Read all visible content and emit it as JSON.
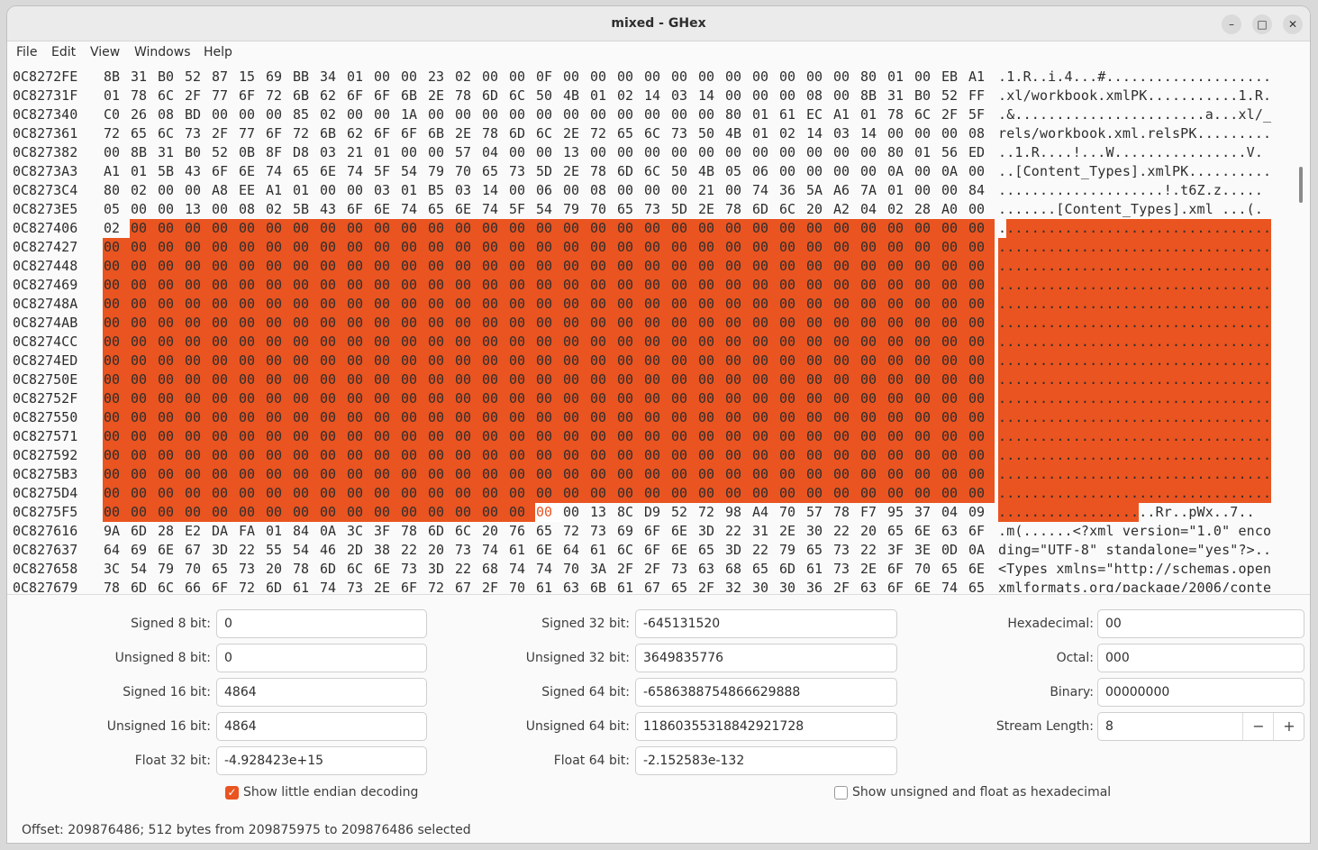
{
  "window": {
    "title": "mixed - GHex"
  },
  "menu": [
    "File",
    "Edit",
    "View",
    "Windows",
    "Help"
  ],
  "hex_rows": [
    {
      "offset": "0C8272FE",
      "bytes": "8B 31 B0 52 87 15 69 BB 34 01 00 00 23 02 00 00 0F 00 00 00 00 00 00 00 00 00 00 00 80 01 00 EB A1",
      "ascii": ".1.R..i.4...#...................."
    },
    {
      "offset": "0C82731F",
      "bytes": "01 78 6C 2F 77 6F 72 6B 62 6F 6F 6B 2E 78 6D 6C 50 4B 01 02 14 03 14 00 00 00 08 00 8B 31 B0 52 FF",
      "ascii": ".xl/workbook.xmlPK...........1.R."
    },
    {
      "offset": "0C827340",
      "bytes": "C0 26 08 BD 00 00 00 85 02 00 00 1A 00 00 00 00 00 00 00 00 00 00 00 80 01 61 EC A1 01 78 6C 2F 5F",
      "ascii": ".&.......................a...xl/_"
    },
    {
      "offset": "0C827361",
      "bytes": "72 65 6C 73 2F 77 6F 72 6B 62 6F 6F 6B 2E 78 6D 6C 2E 72 65 6C 73 50 4B 01 02 14 03 14 00 00 00 08",
      "ascii": "rels/workbook.xml.relsPK........."
    },
    {
      "offset": "0C827382",
      "bytes": "00 8B 31 B0 52 0B 8F D8 03 21 01 00 00 57 04 00 00 13 00 00 00 00 00 00 00 00 00 00 00 80 01 56 ED",
      "ascii": "..1.R....!...W................V."
    },
    {
      "offset": "0C8273A3",
      "bytes": "A1 01 5B 43 6F 6E 74 65 6E 74 5F 54 79 70 65 73 5D 2E 78 6D 6C 50 4B 05 06 00 00 00 00 0A 00 0A 00",
      "ascii": "..[Content_Types].xmlPK.........."
    },
    {
      "offset": "0C8273C4",
      "bytes": "80 02 00 00 A8 EE A1 01 00 00 03 01 B5 03 14 00 06 00 08 00 00 00 21 00 74 36 5A A6 7A 01 00 00 84",
      "ascii": "....................!.t6Z.z....."
    },
    {
      "offset": "0C8273E5",
      "bytes": "05 00 00 13 00 08 02 5B 43 6F 6E 74 65 6E 74 5F 54 79 70 65 73 5D 2E 78 6D 6C 20 A2 04 02 28 A0 00",
      "ascii": ".......[Content_Types].xml ...(."
    },
    {
      "offset": "0C827406",
      "bytes": "02 00 00 00 00 00 00 00 00 00 00 00 00 00 00 00 00 00 00 00 00 00 00 00 00 00 00 00 00 00 00 00 00",
      "ascii": "................................."
    },
    {
      "offset": "0C827427",
      "bytes": "00 00 00 00 00 00 00 00 00 00 00 00 00 00 00 00 00 00 00 00 00 00 00 00 00 00 00 00 00 00 00 00 00",
      "ascii": "................................."
    },
    {
      "offset": "0C827448",
      "bytes": "00 00 00 00 00 00 00 00 00 00 00 00 00 00 00 00 00 00 00 00 00 00 00 00 00 00 00 00 00 00 00 00 00",
      "ascii": "................................."
    },
    {
      "offset": "0C827469",
      "bytes": "00 00 00 00 00 00 00 00 00 00 00 00 00 00 00 00 00 00 00 00 00 00 00 00 00 00 00 00 00 00 00 00 00",
      "ascii": "................................."
    },
    {
      "offset": "0C82748A",
      "bytes": "00 00 00 00 00 00 00 00 00 00 00 00 00 00 00 00 00 00 00 00 00 00 00 00 00 00 00 00 00 00 00 00 00",
      "ascii": "................................."
    },
    {
      "offset": "0C8274AB",
      "bytes": "00 00 00 00 00 00 00 00 00 00 00 00 00 00 00 00 00 00 00 00 00 00 00 00 00 00 00 00 00 00 00 00 00",
      "ascii": "................................."
    },
    {
      "offset": "0C8274CC",
      "bytes": "00 00 00 00 00 00 00 00 00 00 00 00 00 00 00 00 00 00 00 00 00 00 00 00 00 00 00 00 00 00 00 00 00",
      "ascii": "................................."
    },
    {
      "offset": "0C8274ED",
      "bytes": "00 00 00 00 00 00 00 00 00 00 00 00 00 00 00 00 00 00 00 00 00 00 00 00 00 00 00 00 00 00 00 00 00",
      "ascii": "................................."
    },
    {
      "offset": "0C82750E",
      "bytes": "00 00 00 00 00 00 00 00 00 00 00 00 00 00 00 00 00 00 00 00 00 00 00 00 00 00 00 00 00 00 00 00 00",
      "ascii": "................................."
    },
    {
      "offset": "0C82752F",
      "bytes": "00 00 00 00 00 00 00 00 00 00 00 00 00 00 00 00 00 00 00 00 00 00 00 00 00 00 00 00 00 00 00 00 00",
      "ascii": "................................."
    },
    {
      "offset": "0C827550",
      "bytes": "00 00 00 00 00 00 00 00 00 00 00 00 00 00 00 00 00 00 00 00 00 00 00 00 00 00 00 00 00 00 00 00 00",
      "ascii": "................................."
    },
    {
      "offset": "0C827571",
      "bytes": "00 00 00 00 00 00 00 00 00 00 00 00 00 00 00 00 00 00 00 00 00 00 00 00 00 00 00 00 00 00 00 00 00",
      "ascii": "................................."
    },
    {
      "offset": "0C827592",
      "bytes": "00 00 00 00 00 00 00 00 00 00 00 00 00 00 00 00 00 00 00 00 00 00 00 00 00 00 00 00 00 00 00 00 00",
      "ascii": "................................."
    },
    {
      "offset": "0C8275B3",
      "bytes": "00 00 00 00 00 00 00 00 00 00 00 00 00 00 00 00 00 00 00 00 00 00 00 00 00 00 00 00 00 00 00 00 00",
      "ascii": "................................."
    },
    {
      "offset": "0C8275D4",
      "bytes": "00 00 00 00 00 00 00 00 00 00 00 00 00 00 00 00 00 00 00 00 00 00 00 00 00 00 00 00 00 00 00 00 00",
      "ascii": "................................."
    },
    {
      "offset": "0C8275F5",
      "bytes": "00 00 00 00 00 00 00 00 00 00 00 00 00 00 00 00 00 00 13 8C D9 52 72 98 A4 70 57 78 F7 95 37 04 09",
      "ascii": "...................Rr..pWx..7.."
    },
    {
      "offset": "0C827616",
      "bytes": "9A 6D 28 E2 DA FA 01 84 0A 3C 3F 78 6D 6C 20 76 65 72 73 69 6F 6E 3D 22 31 2E 30 22 20 65 6E 63 6F",
      "ascii": ".m(......<?xml version=\"1.0\" enco"
    },
    {
      "offset": "0C827637",
      "bytes": "64 69 6E 67 3D 22 55 54 46 2D 38 22 20 73 74 61 6E 64 61 6C 6F 6E 65 3D 22 79 65 73 22 3F 3E 0D 0A",
      "ascii": "ding=\"UTF-8\" standalone=\"yes\"?>.."
    },
    {
      "offset": "0C827658",
      "bytes": "3C 54 79 70 65 73 20 78 6D 6C 6E 73 3D 22 68 74 74 70 3A 2F 2F 73 63 68 65 6D 61 73 2E 6F 70 65 6E",
      "ascii": "<Types xmlns=\"http://schemas.open"
    },
    {
      "offset": "0C827679",
      "bytes": "78 6D 6C 66 6F 72 6D 61 74 73 2E 6F 72 67 2F 70 61 63 6B 61 67 65 2F 32 30 30 36 2F 63 6F 6E 74 65",
      "ascii": "xmlformats.org/package/2006/conte"
    }
  ],
  "selection": {
    "start_row": 8,
    "start_col": 1,
    "end_row": 23,
    "end_col": 16,
    "cursor_row": 23,
    "cursor_col": 17
  },
  "colors": {
    "selection": "#e95420",
    "accent": "#e95420"
  },
  "inspector": {
    "signed8_label": "Signed 8 bit:",
    "signed8": "0",
    "unsigned8_label": "Unsigned 8 bit:",
    "unsigned8": "0",
    "signed16_label": "Signed 16 bit:",
    "signed16": "4864",
    "unsigned16_label": "Unsigned 16 bit:",
    "unsigned16": "4864",
    "float32_label": "Float 32 bit:",
    "float32": "-4.928423e+15",
    "signed32_label": "Signed 32 bit:",
    "signed32": "-645131520",
    "unsigned32_label": "Unsigned 32 bit:",
    "unsigned32": "3649835776",
    "signed64_label": "Signed 64 bit:",
    "signed64": "-6586388754866629888",
    "unsigned64_label": "Unsigned 64 bit:",
    "unsigned64": "11860355318842921728",
    "float64_label": "Float 64 bit:",
    "float64": "-2.152583e-132",
    "hex_label": "Hexadecimal:",
    "hex": "00",
    "octal_label": "Octal:",
    "octal": "000",
    "binary_label": "Binary:",
    "binary": "00000000",
    "stream_label": "Stream Length:",
    "stream": "8",
    "minus": "−",
    "plus": "+",
    "little_endian_label": "Show little endian decoding",
    "little_endian_checked": true,
    "hexfloat_label": "Show unsigned and float as hexadecimal",
    "hexfloat_checked": false
  },
  "status": "Offset: 209876486; 512 bytes from 209875975 to 209876486 selected"
}
